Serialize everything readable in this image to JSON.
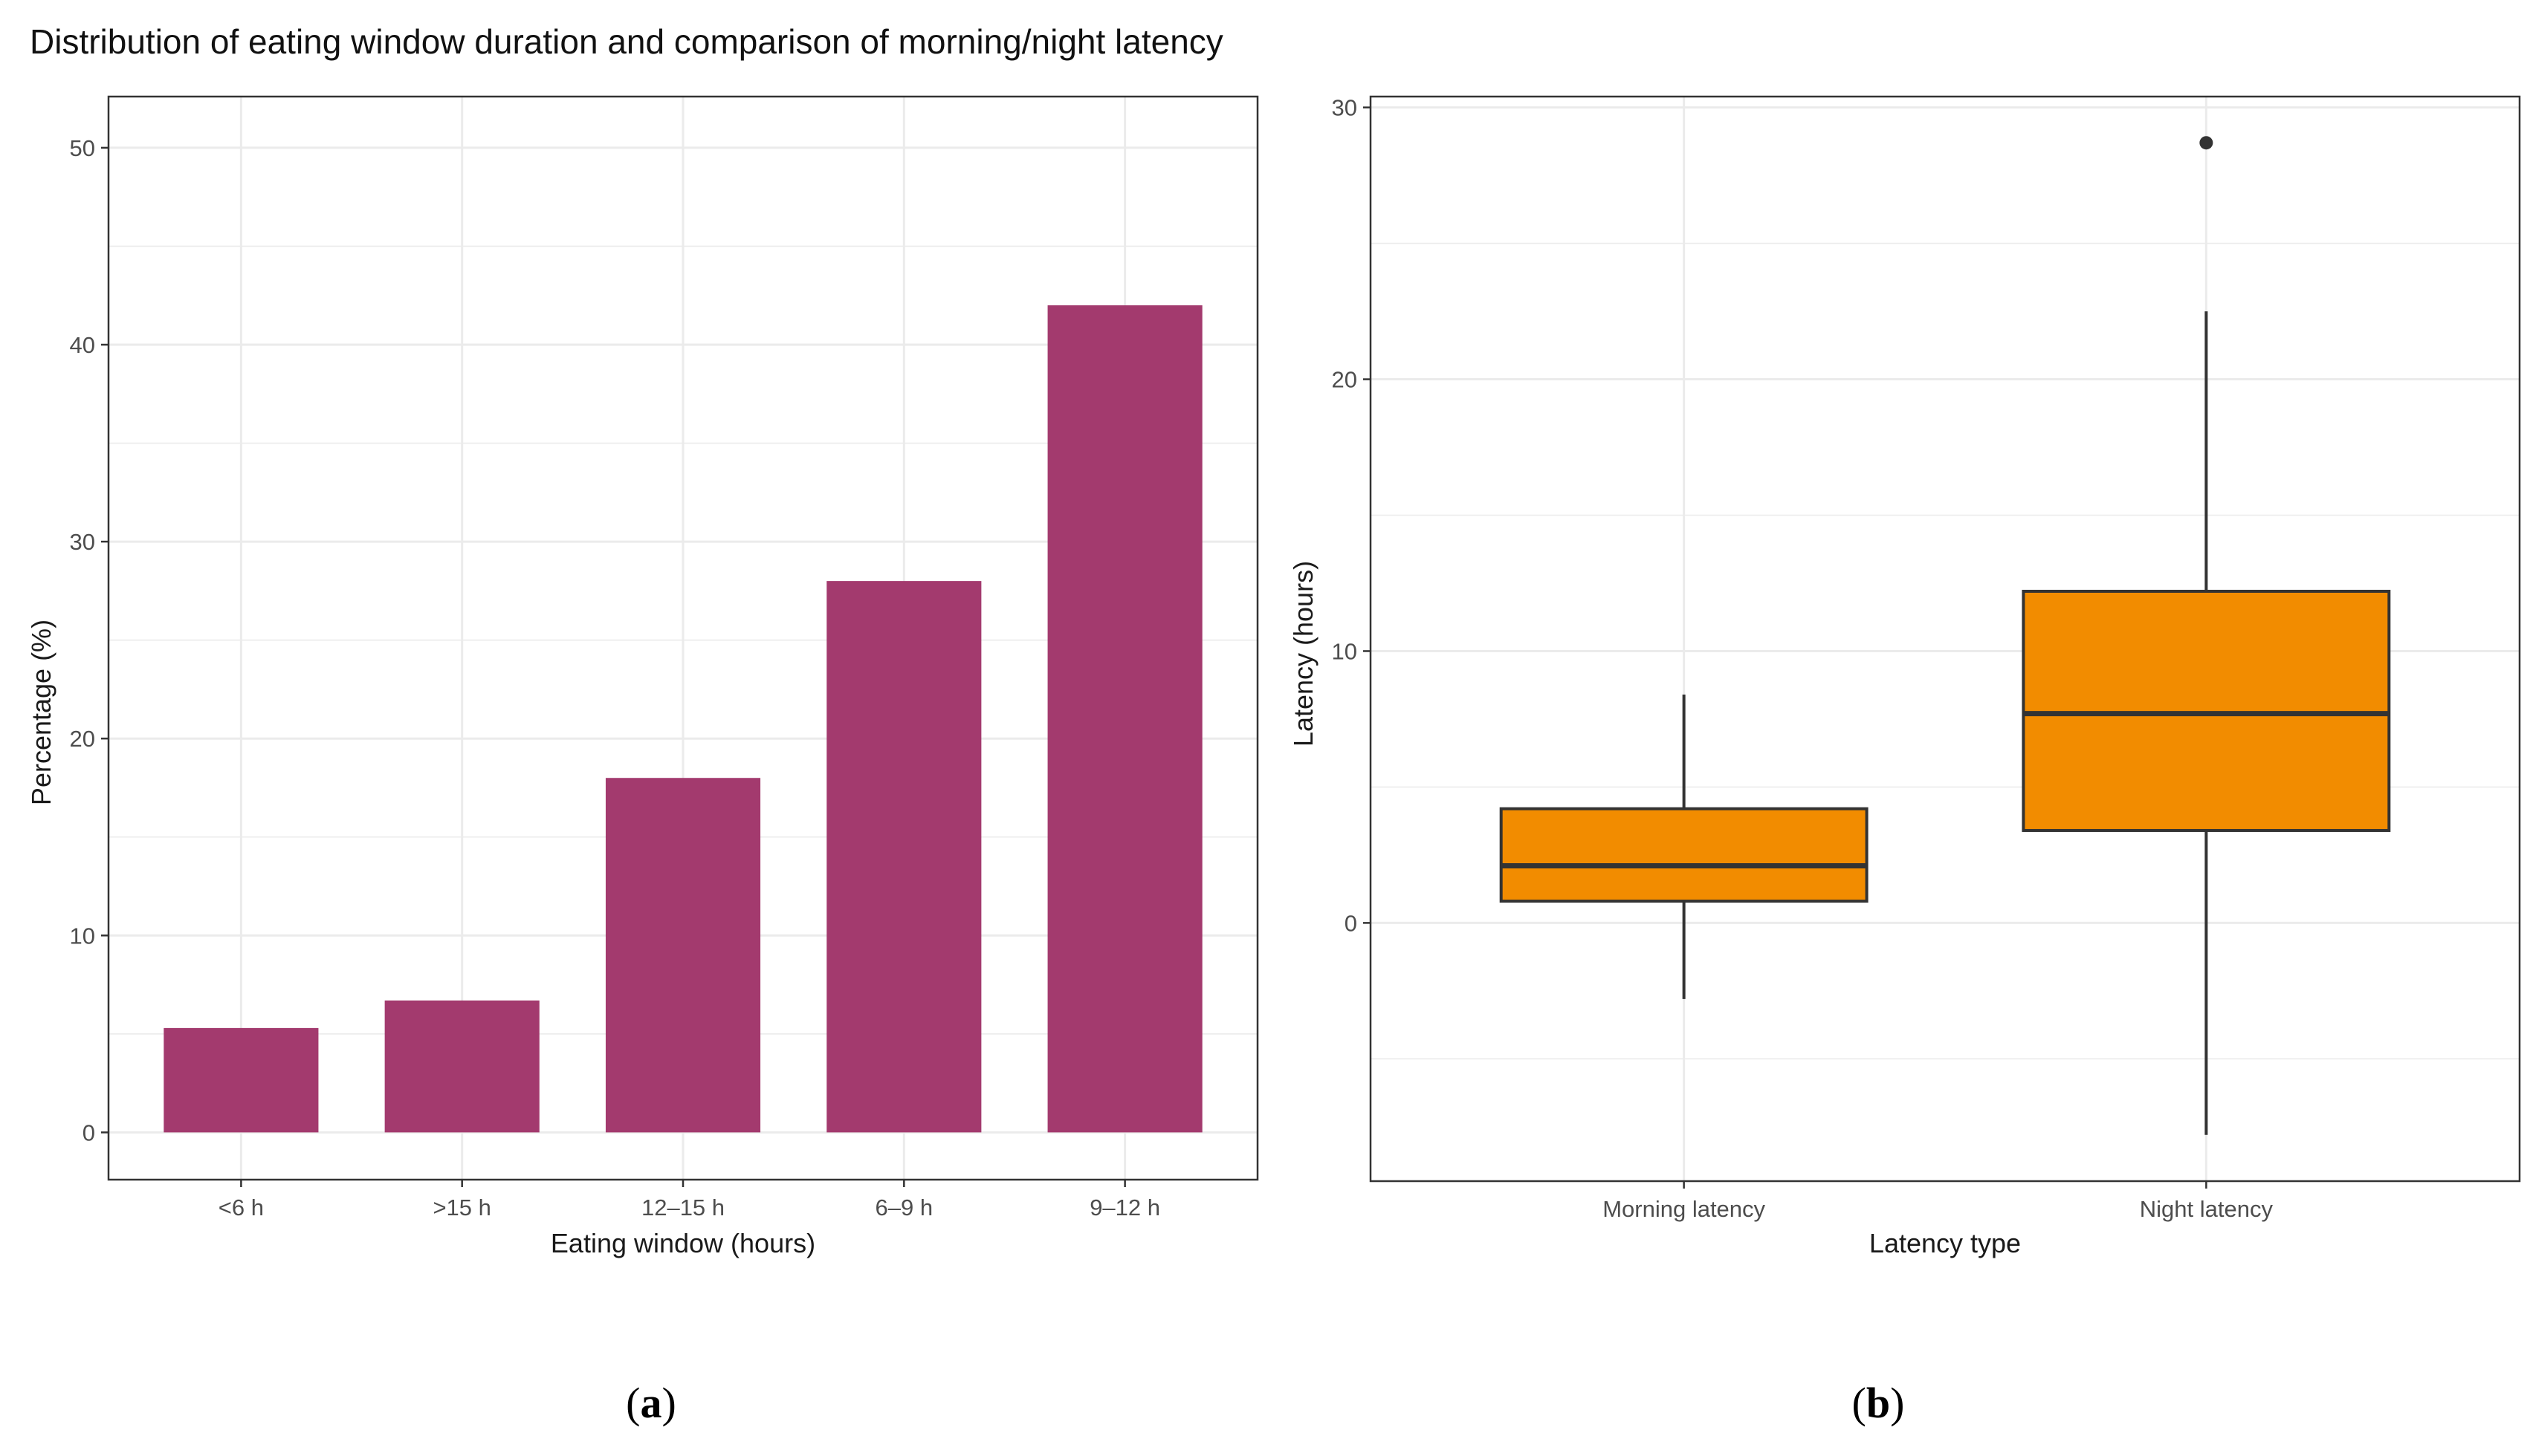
{
  "figure": {
    "title": "Distribution of eating window duration and comparison of morning/night latency",
    "panel_a_label": "a",
    "panel_b_label": "b"
  },
  "colors": {
    "bar": "#a33a6e",
    "box_fill": "#f28c00",
    "box_line": "#333333",
    "grid": "#ebebeb",
    "panel_border": "#333333"
  },
  "chart_data": [
    {
      "type": "bar",
      "categories": [
        "<6 h",
        ">15 h",
        "12–15 h",
        "6–9 h",
        "9–12 h"
      ],
      "values": [
        5.3,
        6.7,
        18.0,
        28.0,
        42.0
      ],
      "xlabel": "Eating window (hours)",
      "ylabel": "Percentage (%)",
      "ylim": [
        -2.4,
        52.6
      ],
      "yticks": [
        0,
        10,
        20,
        30,
        40,
        50
      ],
      "grid": true
    },
    {
      "type": "box",
      "categories": [
        "Morning latency",
        "Night latency"
      ],
      "boxes": [
        {
          "category": "Morning latency",
          "whisker_low": -2.8,
          "q1": 0.8,
          "median": 2.1,
          "q3": 4.2,
          "whisker_high": 8.4,
          "outliers": []
        },
        {
          "category": "Night latency",
          "whisker_low": -7.8,
          "q1": 3.4,
          "median": 7.7,
          "q3": 12.2,
          "whisker_high": 22.5,
          "outliers": [
            28.7
          ]
        }
      ],
      "xlabel": "Latency type",
      "ylabel": "Latency (hours)",
      "ylim": [
        -9.5,
        30.4
      ],
      "yticks": [
        0,
        10,
        20,
        30
      ],
      "grid": true
    }
  ]
}
